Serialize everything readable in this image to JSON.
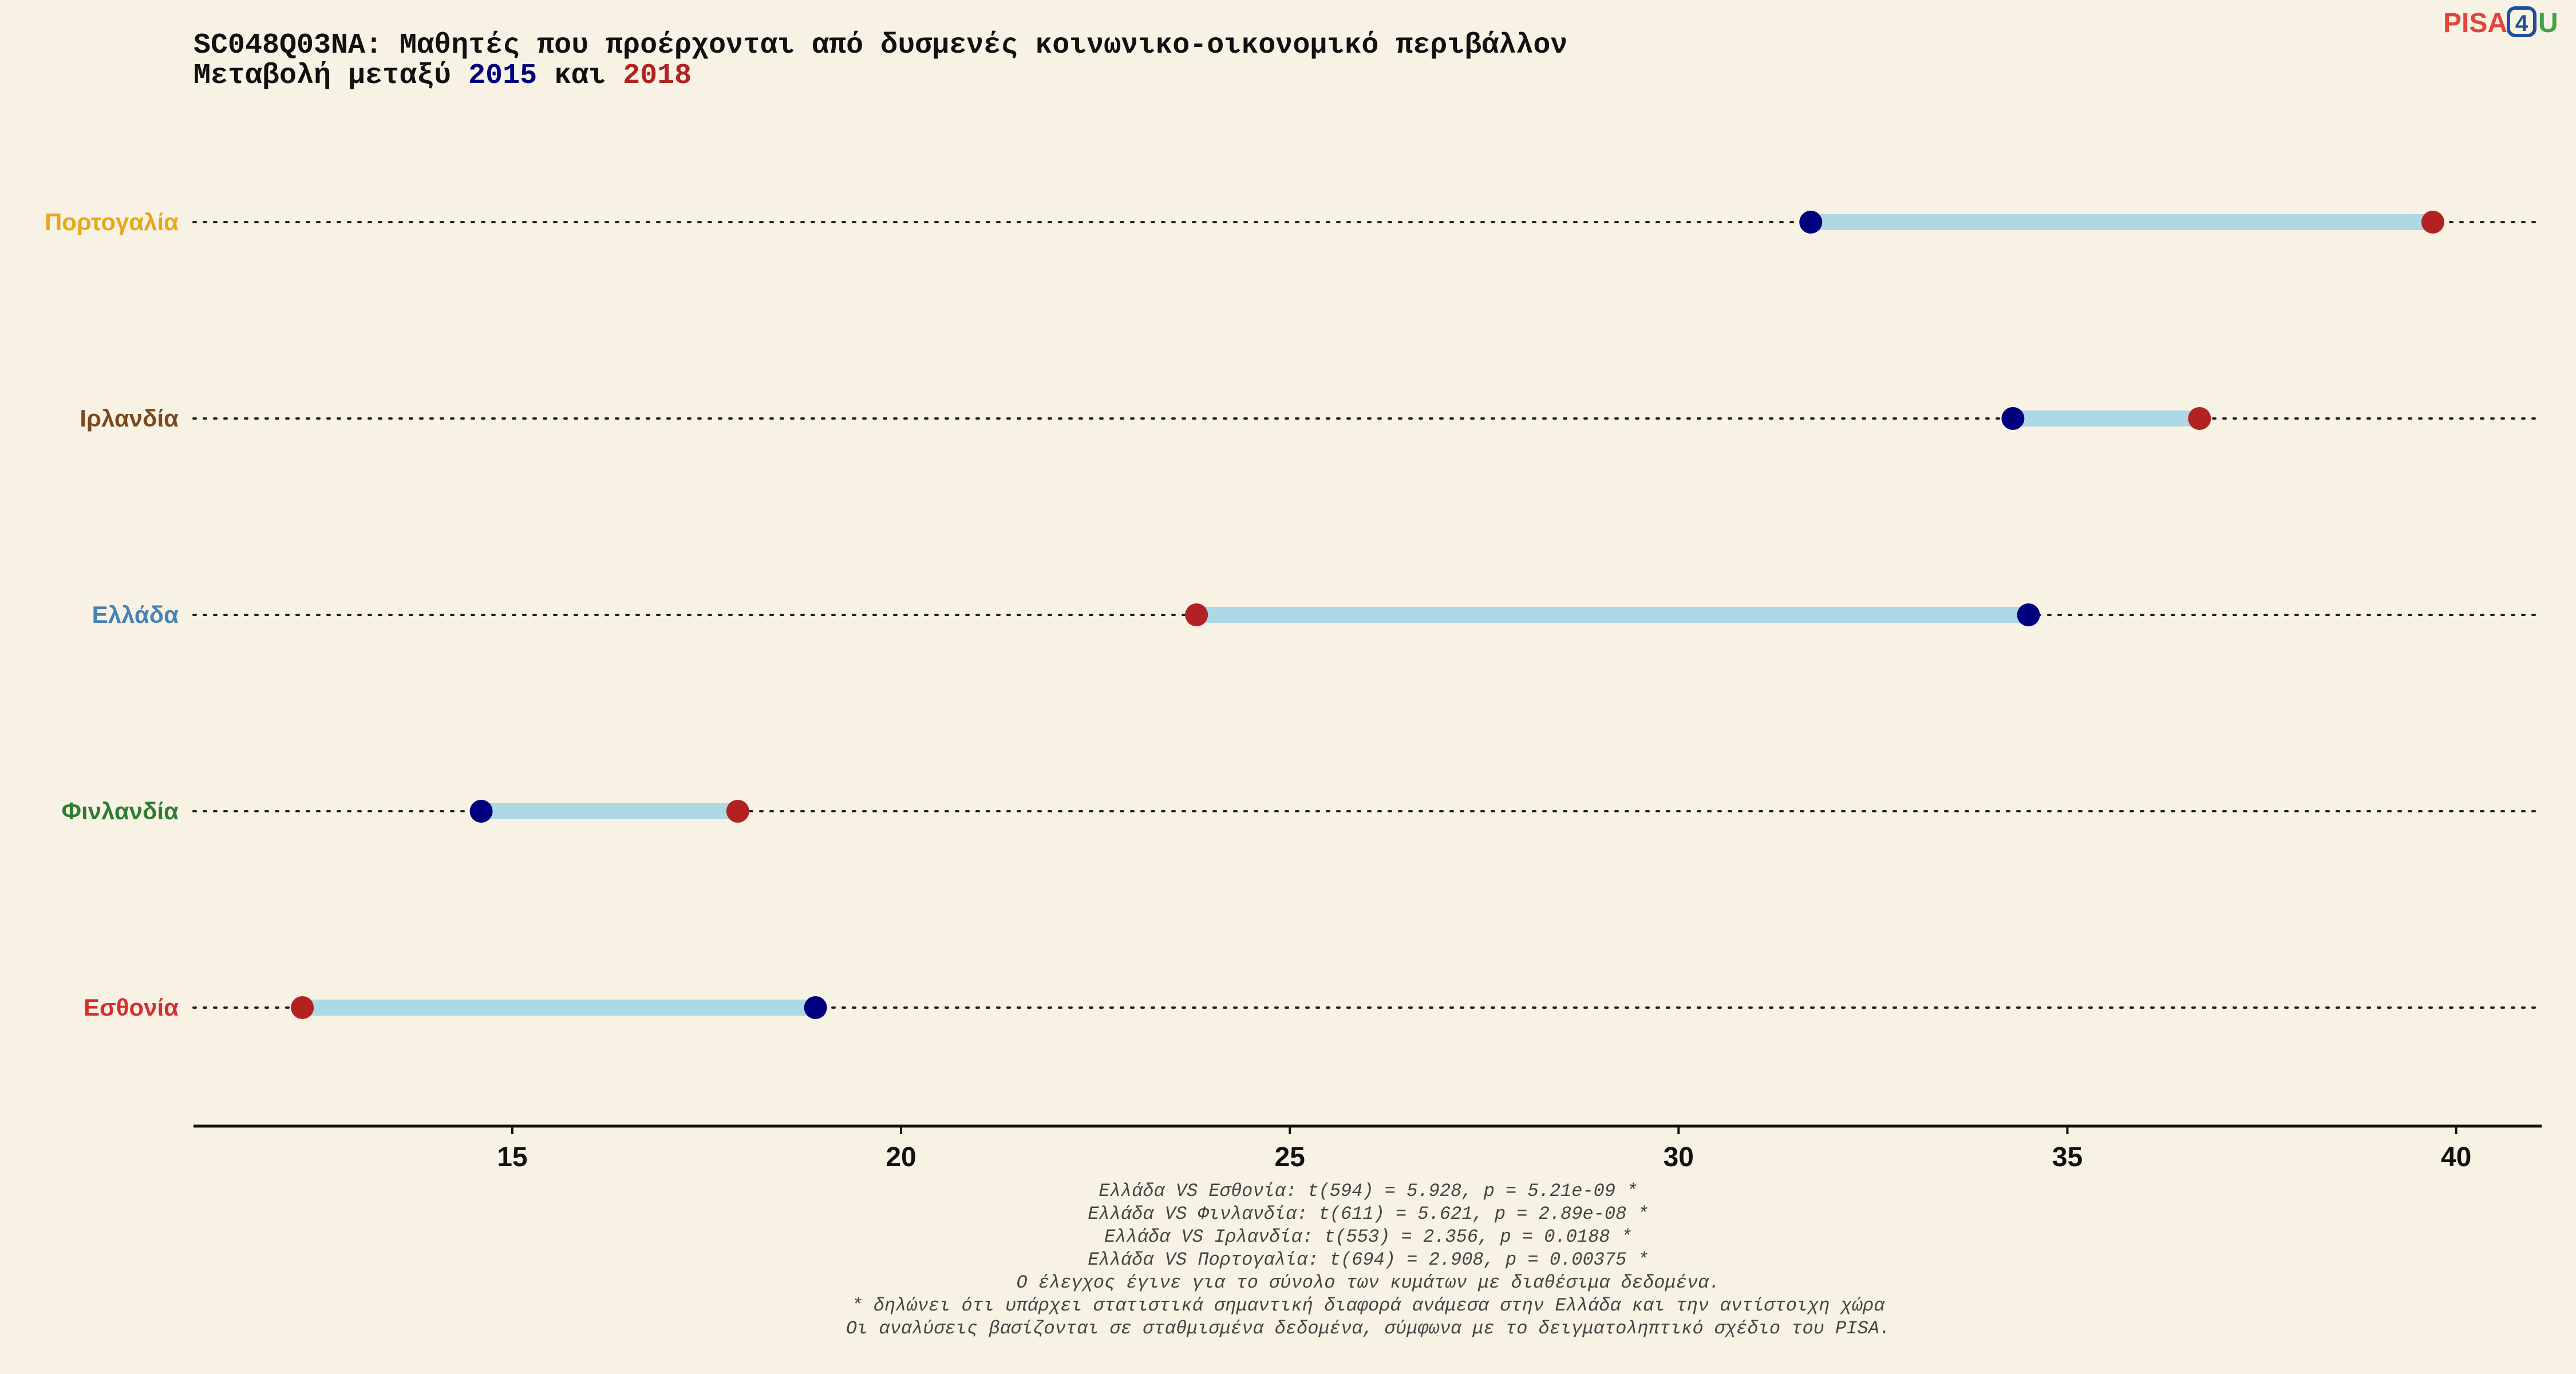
{
  "logo": {
    "text_left": "PISA",
    "text_box": "4",
    "text_right": "U",
    "colors": {
      "left": "#E2463A",
      "box": "#1F4E9C",
      "right": "#3FA34D"
    }
  },
  "header": {
    "title": "SC048Q03NA: Μαθητές που προέρχονται από δυσμενές κοινωνικο-οικονομικό περιβάλλον",
    "subtitle_prefix": "Μεταβολή μεταξύ ",
    "subtitle_year1": "2015",
    "subtitle_mid": " και ",
    "subtitle_year2": "2018"
  },
  "colors": {
    "background": "#F8F2E4",
    "year_2015": "#00007F",
    "year_2018": "#B22222",
    "segment": "#ADD8E6",
    "axis": "#111111"
  },
  "chart_data": {
    "type": "dumbbell",
    "xlim": [
      10.9,
      41.1
    ],
    "x_ticks": [
      15,
      20,
      25,
      30,
      35,
      40
    ],
    "legend": "none",
    "grid": false,
    "categories": [
      {
        "name": "Πορτογαλία",
        "color": "#E6A817",
        "v2015": 31.7,
        "v2018": 39.7
      },
      {
        "name": "Ιρλανδία",
        "color": "#7A4A1E",
        "v2015": 34.3,
        "v2018": 36.7
      },
      {
        "name": "Ελλάδα",
        "color": "#4682B4",
        "v2015": 34.5,
        "v2018": 23.8
      },
      {
        "name": "Φινλανδία",
        "color": "#2E7D32",
        "v2015": 14.6,
        "v2018": 17.9
      },
      {
        "name": "Εσθονία",
        "color": "#D32F2F",
        "v2015": 18.9,
        "v2018": 12.3
      }
    ],
    "series": [
      {
        "name": "2015",
        "color": "#00007F"
      },
      {
        "name": "2018",
        "color": "#B22222"
      }
    ]
  },
  "footnotes": [
    "Ελλάδα VS Εσθονία: t(594) = 5.928, p = 5.21e-09 *",
    "Ελλάδα VS Φινλανδία: t(611) = 5.621, p = 2.89e-08 *",
    "Ελλάδα VS Ιρλανδία: t(553) = 2.356, p = 0.0188 *",
    "Ελλάδα VS Πορτογαλία: t(694) = 2.908, p = 0.00375 *",
    "Ο έλεγχος έγινε για το σύνολο των κυμάτων με διαθέσιμα δεδομένα.",
    "* δηλώνει ότι υπάρχει στατιστικά σημαντική διαφορά ανάμεσα στην Ελλάδα και την αντίστοιχη χώρα",
    "Οι αναλύσεις βασίζονται σε σταθμισμένα δεδομένα, σύμφωνα με το δειγματοληπτικό σχέδιο του PISA."
  ]
}
